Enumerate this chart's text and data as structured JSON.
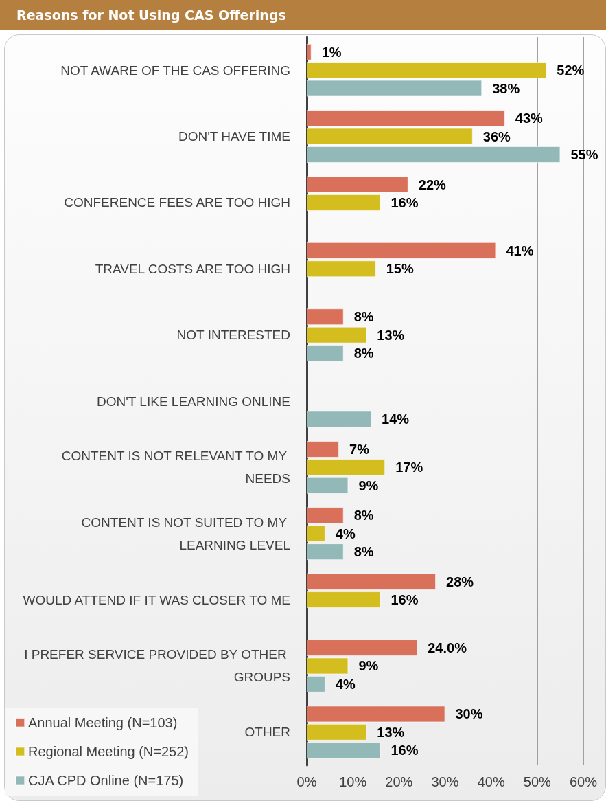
{
  "chart_data": {
    "type": "bar",
    "orientation": "horizontal",
    "title": "Reasons for Not Using CAS Offerings",
    "categories": [
      "NOT AWARE OF THE CAS OFFERING",
      "DON'T HAVE TIME",
      "CONFERENCE FEES ARE TOO HIGH",
      "TRAVEL COSTS ARE TOO HIGH",
      "NOT INTERESTED",
      "DON'T LIKE LEARNING ONLINE",
      "CONTENT IS NOT RELEVANT TO MY NEEDS",
      "CONTENT IS NOT SUITED TO MY LEARNING LEVEL",
      "WOULD ATTEND IF IT WAS CLOSER TO ME",
      "I PREFER SERVICE PROVIDED BY OTHER GROUPS",
      "OTHER"
    ],
    "series": [
      {
        "name": "Annual Meeting (N=103)",
        "color": "#d9705a",
        "values": [
          1,
          43,
          22,
          41,
          8,
          null,
          7,
          8,
          28,
          24.0,
          30
        ],
        "value_labels": [
          "1%",
          "43%",
          "22%",
          "41%",
          "8%",
          null,
          "7%",
          "8%",
          "28%",
          "24.0%",
          "30%"
        ]
      },
      {
        "name": "Regional Meeting (N=252)",
        "color": "#d4bd1e",
        "values": [
          52,
          36,
          16,
          15,
          13,
          null,
          17,
          4,
          16,
          9,
          13
        ],
        "value_labels": [
          "52%",
          "36%",
          "16%",
          "15%",
          "13%",
          null,
          "17%",
          "4%",
          "16%",
          "9%",
          "13%"
        ]
      },
      {
        "name": "CJA CPD Online (N=175)",
        "color": "#93b8b8",
        "values": [
          38,
          55,
          null,
          null,
          8,
          14,
          9,
          8,
          null,
          4,
          16
        ],
        "value_labels": [
          "38%",
          "55%",
          null,
          null,
          "8%",
          "14%",
          "9%",
          "8%",
          null,
          "4%",
          "16%"
        ]
      }
    ],
    "xlim": [
      0,
      60
    ],
    "xticks": [
      {
        "value": 0,
        "label": "0%"
      },
      {
        "value": 10,
        "label": "10%"
      },
      {
        "value": 20,
        "label": "20%"
      },
      {
        "value": 30,
        "label": "30%"
      },
      {
        "value": 40,
        "label": "40%"
      },
      {
        "value": 50,
        "label": "50%"
      },
      {
        "value": 60,
        "label": "60%"
      }
    ],
    "grid": "x",
    "legend": "bottom left"
  }
}
